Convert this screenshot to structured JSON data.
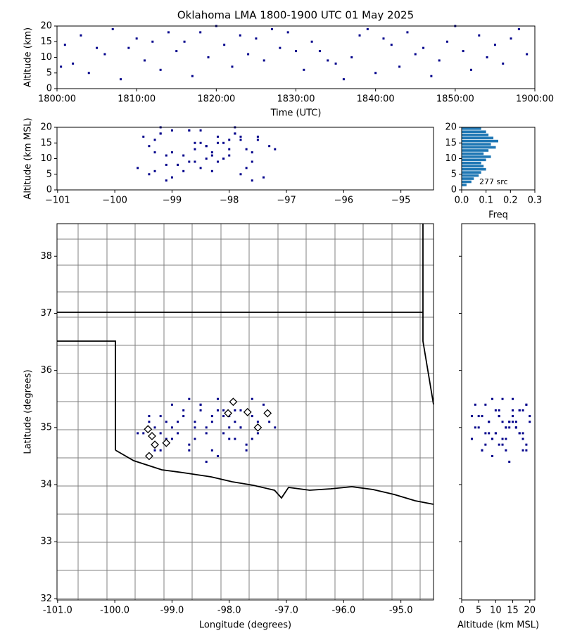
{
  "chart_data": [
    {
      "type": "scatter",
      "title": "Oklahoma LMA 1800-1900 UTC 01 May 2025",
      "xlabel": "Time (UTC)",
      "ylabel": "Altitude (km)",
      "color": "#00008b",
      "x": [
        1,
        2,
        3,
        4,
        6,
        7,
        8,
        9,
        10,
        11,
        13,
        14,
        15,
        16,
        17,
        19,
        20,
        21,
        22,
        23,
        24,
        25,
        26,
        27,
        28,
        29,
        31,
        32,
        33,
        35,
        36,
        37,
        38,
        39,
        40,
        41,
        42,
        43,
        44,
        45,
        46,
        47,
        48,
        49,
        50,
        51,
        52,
        53,
        54,
        55,
        56,
        57,
        58,
        59,
        0.5,
        5,
        12,
        18,
        30,
        34
      ],
      "y": [
        14,
        8,
        17,
        5,
        11,
        19,
        3,
        13,
        16,
        9,
        6,
        18,
        12,
        15,
        4,
        10,
        20,
        14,
        7,
        17,
        11,
        16,
        9,
        19,
        13,
        18,
        6,
        15,
        12,
        8,
        3,
        10,
        17,
        19,
        5,
        16,
        14,
        7,
        18,
        11,
        13,
        4,
        9,
        15,
        20,
        12,
        6,
        17,
        10,
        14,
        8,
        16,
        19,
        11,
        7,
        13,
        15,
        18,
        12,
        9
      ],
      "xlim": [
        0,
        60
      ],
      "xticks": [
        {
          "value": 0,
          "label": "1800:00"
        },
        {
          "value": 10,
          "label": "1810:00"
        },
        {
          "value": 20,
          "label": "1820:00"
        },
        {
          "value": 30,
          "label": "1830:00"
        },
        {
          "value": 40,
          "label": "1840:00"
        },
        {
          "value": 50,
          "label": "1850:00"
        },
        {
          "value": 60,
          "label": "1900:00"
        }
      ],
      "ylim": [
        0,
        20
      ],
      "yticks": [
        0,
        5,
        10,
        15,
        20
      ]
    },
    {
      "type": "scatter",
      "ylabel": "Altitude (km MSL)",
      "color": "#00008b",
      "x": [
        -99.4,
        -98.9,
        -98.2,
        -97.8,
        -99.1,
        -98.5,
        -97.6,
        -98.0,
        -99.3,
        -98.7,
        -98.3,
        -97.9,
        -99.0,
        -98.6,
        -97.4,
        -98.1,
        -99.2,
        -98.4,
        -97.7,
        -99.5,
        -98.8,
        -97.5,
        -98.2,
        -99.0,
        -98.6,
        -97.9,
        -99.3,
        -98.1,
        -97.6,
        -98.9,
        -99.1,
        -98.4,
        -97.8,
        -98.7,
        -99.4,
        -98.0,
        -97.3,
        -98.5,
        -99.2,
        -98.3,
        -97.7,
        -99.0,
        -98.6,
        -98.2,
        -97.9,
        -99.3,
        -98.8,
        -97.5,
        -98.1,
        -98.4,
        -99.1,
        -97.8,
        -98.7,
        -98.0,
        -99.6,
        -97.2,
        -98.5,
        -99.2,
        -98.3,
        -97.6
      ],
      "y": [
        14,
        8,
        17,
        5,
        11,
        19,
        3,
        13,
        16,
        9,
        6,
        18,
        12,
        15,
        4,
        10,
        20,
        14,
        7,
        17,
        11,
        16,
        9,
        19,
        13,
        18,
        6,
        15,
        12,
        8,
        3,
        10,
        17,
        19,
        5,
        16,
        14,
        7,
        18,
        11,
        13,
        4,
        9,
        15,
        20,
        12,
        6,
        17,
        10,
        14,
        8,
        16,
        19,
        11,
        7,
        13,
        15,
        18,
        12,
        9
      ],
      "xlim": [
        -101.01,
        -94.43
      ],
      "xticks": [
        {
          "value": -101,
          "label": "−101"
        },
        {
          "value": -100,
          "label": "−100"
        },
        {
          "value": -99,
          "label": "−99"
        },
        {
          "value": -98,
          "label": "−98"
        },
        {
          "value": -97,
          "label": "−97"
        },
        {
          "value": -96,
          "label": "−96"
        },
        {
          "value": -95,
          "label": "−95"
        }
      ],
      "ylim": [
        0,
        20
      ],
      "yticks": [
        0,
        5,
        10,
        15,
        20
      ]
    },
    {
      "type": "histogram",
      "xlabel": "Freq",
      "annotation": "277 src",
      "color": "#1f77b4",
      "bins": [
        0,
        1,
        2,
        3,
        4,
        5,
        6,
        7,
        8,
        9,
        10,
        11,
        12,
        13,
        14,
        15,
        16,
        17,
        18,
        19,
        20
      ],
      "values": [
        0,
        0.02,
        0.04,
        0.05,
        0.07,
        0.08,
        0.1,
        0.09,
        0.08,
        0.1,
        0.12,
        0.09,
        0.11,
        0.14,
        0.12,
        0.15,
        0.13,
        0.11,
        0.1,
        0.08
      ],
      "xlim": [
        0,
        0.3
      ],
      "xticks": [
        {
          "value": 0,
          "label": "0.0"
        },
        0.1,
        0.2,
        0.3
      ],
      "ylim": [
        0,
        20
      ],
      "yticks": [
        0,
        5,
        10,
        15,
        20
      ]
    },
    {
      "type": "map",
      "xlabel": "Longitude (degrees)",
      "ylabel": "Latitude (degrees)",
      "color": "#00008b",
      "x": [
        -99.4,
        -98.9,
        -98.2,
        -97.8,
        -99.1,
        -98.5,
        -97.6,
        -98.0,
        -99.3,
        -98.7,
        -98.3,
        -97.9,
        -99.0,
        -98.6,
        -97.4,
        -98.1,
        -99.2,
        -98.4,
        -97.7,
        -99.5,
        -98.8,
        -97.5,
        -98.2,
        -99.0,
        -98.6,
        -97.9,
        -99.3,
        -98.1,
        -97.6,
        -98.9,
        -99.1,
        -98.4,
        -97.8,
        -98.7,
        -99.4,
        -98.0,
        -97.3,
        -98.5,
        -99.2,
        -98.3,
        -97.7,
        -99.0,
        -98.6,
        -98.2,
        -97.9,
        -99.3,
        -98.8,
        -97.5,
        -98.1,
        -98.4,
        -99.1,
        -97.8,
        -98.7,
        -98.0,
        -99.6,
        -97.2,
        -98.5,
        -99.2,
        -98.3,
        -97.6
      ],
      "y": [
        35.1,
        34.9,
        35.3,
        35.0,
        34.7,
        35.4,
        35.2,
        34.8,
        35.0,
        35.5,
        34.6,
        35.3,
        34.8,
        35.1,
        35.4,
        34.9,
        35.2,
        35.0,
        34.7,
        34.9,
        35.3,
        35.1,
        34.5,
        35.4,
        35.0,
        34.8,
        34.6,
        35.2,
        35.5,
        35.1,
        34.8,
        34.9,
        35.3,
        34.6,
        35.2,
        35.0,
        35.1,
        35.4,
        34.9,
        35.2,
        34.6,
        35.0,
        34.8,
        35.5,
        35.1,
        34.7,
        35.2,
        34.9,
        35.3,
        34.4,
        35.1,
        35.0,
        34.7,
        35.2,
        34.9,
        35.0,
        35.3,
        34.6,
        35.1,
        34.8
      ],
      "stations": {
        "x": [
          -99.42,
          -99.35,
          -99.3,
          -99.1,
          -99.4,
          -98.02,
          -97.93,
          -97.68,
          -97.5,
          -97.33
        ],
        "y": [
          34.97,
          34.85,
          34.7,
          34.73,
          34.5,
          35.25,
          35.45,
          35.27,
          35.0,
          35.25
        ]
      },
      "xlim": [
        -101.01,
        -94.43
      ],
      "xticks": [
        {
          "value": -101,
          "label": "-101.0"
        },
        {
          "value": -100,
          "label": "-100.0"
        },
        {
          "value": -99,
          "label": "-99.0"
        },
        {
          "value": -98,
          "label": "-98.0"
        },
        {
          "value": -97,
          "label": "-97.0"
        },
        {
          "value": -96,
          "label": "-96.0"
        },
        {
          "value": -95,
          "label": "-95.0"
        }
      ],
      "ylim": [
        31.98,
        38.57
      ],
      "yticks": [
        32,
        33,
        34,
        35,
        36,
        37,
        38
      ]
    },
    {
      "type": "scatter",
      "xlabel": "Altitude (km MSL)",
      "color": "#00008b",
      "x": [
        14,
        8,
        17,
        5,
        11,
        19,
        3,
        13,
        16,
        9,
        6,
        18,
        12,
        15,
        4,
        10,
        20,
        14,
        7,
        17,
        11,
        16,
        9,
        19,
        13,
        18,
        6,
        15,
        12,
        8,
        3,
        10,
        17,
        19,
        5,
        16,
        14,
        7,
        18,
        11,
        13,
        4,
        9,
        15,
        20,
        12,
        6,
        17,
        10,
        14,
        8,
        16,
        19,
        11,
        7,
        13,
        15,
        18,
        12,
        9
      ],
      "y": [
        35.1,
        34.9,
        35.3,
        35.0,
        34.7,
        35.4,
        35.2,
        34.8,
        35.0,
        35.5,
        34.6,
        35.3,
        34.8,
        35.1,
        35.4,
        34.9,
        35.2,
        35.0,
        34.7,
        34.9,
        35.3,
        35.1,
        34.5,
        35.4,
        35.0,
        34.8,
        34.6,
        35.2,
        35.5,
        35.1,
        34.8,
        34.9,
        35.3,
        34.6,
        35.2,
        35.0,
        35.1,
        35.4,
        34.9,
        35.2,
        34.6,
        35.0,
        34.8,
        35.5,
        35.1,
        34.7,
        35.2,
        34.9,
        35.3,
        34.4,
        35.1,
        35.0,
        34.7,
        35.2,
        34.9,
        35.0,
        35.3,
        34.6,
        35.1,
        34.8
      ],
      "xlim": [
        0,
        21.5
      ],
      "xticks": [
        0,
        5,
        10,
        15,
        20
      ],
      "ylim": [
        31.98,
        38.57
      ],
      "yticks": [
        32,
        33,
        34,
        35,
        36,
        37,
        38
      ],
      "hide_ytick_labels": true
    }
  ]
}
